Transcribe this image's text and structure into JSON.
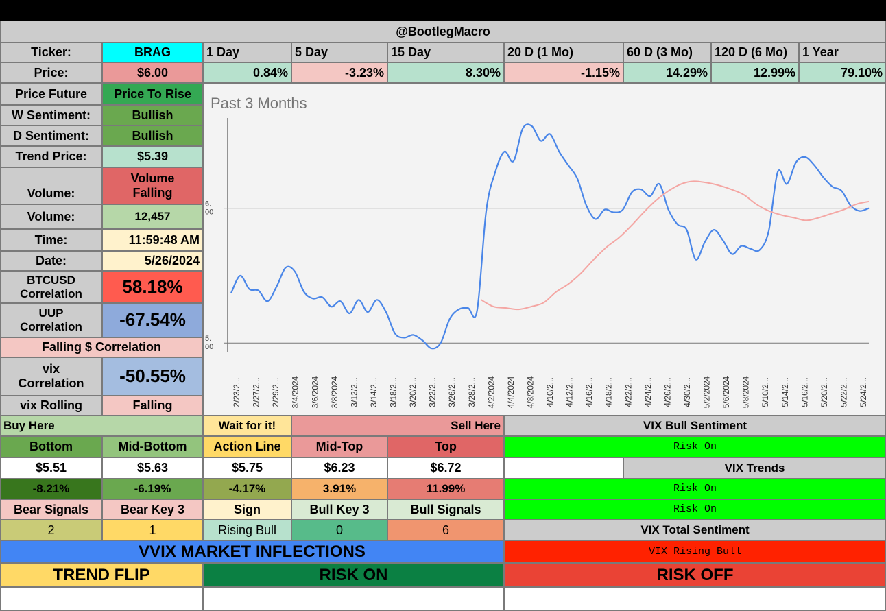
{
  "header": {
    "title": "@BootlegMacro"
  },
  "ticker_row": {
    "label": "Ticker:",
    "value": "BRAG",
    "periods": [
      "1 Day",
      "5 Day",
      "15 Day",
      "20 D (1 Mo)",
      "60 D (3 Mo)",
      "120 D (6 Mo)",
      "1 Year"
    ]
  },
  "price_row": {
    "label": "Price:",
    "value": "$6.00",
    "changes": [
      "0.84%",
      "-3.23%",
      "8.30%",
      "-1.15%",
      "14.29%",
      "12.99%",
      "79.10%"
    ]
  },
  "left_panel": {
    "price_future": {
      "label": "Price Future",
      "value": "Price To Rise"
    },
    "w_sentiment": {
      "label": "W Sentiment:",
      "value": "Bullish"
    },
    "d_sentiment": {
      "label": "D Sentiment:",
      "value": "Bullish"
    },
    "trend_price": {
      "label": "Trend Price:",
      "value": "$5.39"
    },
    "volume_trend": {
      "label": "Volume:",
      "value_line1": "Volume",
      "value_line2": "Falling"
    },
    "volume": {
      "label": "Volume:",
      "value": "12,457"
    },
    "time": {
      "label": "Time:",
      "value": "11:59:48 AM"
    },
    "date": {
      "label": "Date:",
      "value": "5/26/2024"
    },
    "btcusd": {
      "label_line1": "BTCUSD",
      "label_line2": "Correlation",
      "value": "58.18%"
    },
    "uup": {
      "label_line1": "UUP",
      "label_line2": "Correlation",
      "value": "-67.54%"
    },
    "falling_dollar": {
      "label": "Falling $ Correlation"
    },
    "vix_corr": {
      "label_line1": "vix",
      "label_line2": "Correlation",
      "value": "-50.55%"
    },
    "vix_rolling": {
      "label": "vix Rolling",
      "value": "Falling"
    }
  },
  "chart_data": {
    "type": "line",
    "title": "Past 3 Months",
    "y_tick_labels": [
      "6.\n00",
      "5.\n00"
    ],
    "y_ticks": [
      6.0,
      5.0
    ],
    "ylim": [
      4.93,
      6.67
    ],
    "x_tick_labels": [
      "2/23/2...",
      "2/27/2...",
      "2/29/2...",
      "3/4/2024",
      "3/6/2024",
      "3/8/2024",
      "3/12/2...",
      "3/14/2...",
      "3/18/2...",
      "3/20/2...",
      "3/22/2...",
      "3/26/2...",
      "3/28/2...",
      "4/2/2024",
      "4/4/2024",
      "4/8/2024",
      "4/10/2...",
      "4/12/2...",
      "4/16/2...",
      "4/18/2...",
      "4/22/2...",
      "4/24/2...",
      "4/26/2...",
      "4/30/2...",
      "5/2/2024",
      "5/6/2024",
      "5/8/2024",
      "5/10/2...",
      "5/14/2...",
      "5/16/2...",
      "5/20/2...",
      "5/22/2...",
      "5/24/2..."
    ],
    "grid": false,
    "series": [
      {
        "color": "#4a86e8",
        "values": [
          5.37,
          5.5,
          5.4,
          5.39,
          5.31,
          5.42,
          5.56,
          5.53,
          5.38,
          5.33,
          5.34,
          5.27,
          5.31,
          5.22,
          5.32,
          5.23,
          5.32,
          5.23,
          5.07,
          5.04,
          5.06,
          5.02,
          4.96,
          5.0,
          5.18,
          5.25,
          5.26,
          5.24,
          5.98,
          6.27,
          6.42,
          6.35,
          6.59,
          6.61,
          6.5,
          6.55,
          6.42,
          6.32,
          6.22,
          6.02,
          5.92,
          5.99,
          5.97,
          5.99,
          6.12,
          6.14,
          6.09,
          6.18,
          5.99,
          5.88,
          5.84,
          5.62,
          5.75,
          5.84,
          5.76,
          5.66,
          5.72,
          5.7,
          5.69,
          5.83,
          6.27,
          6.18,
          6.34,
          6.38,
          6.32,
          6.23,
          6.16,
          6.13,
          6.02,
          5.98,
          6.0
        ]
      },
      {
        "color": "#f4a6a3",
        "values": [
          null,
          null,
          null,
          null,
          null,
          null,
          null,
          null,
          null,
          null,
          null,
          null,
          null,
          null,
          null,
          null,
          null,
          null,
          null,
          null,
          5.32,
          5.27,
          5.26,
          5.25,
          5.27,
          5.3,
          5.38,
          5.44,
          5.52,
          5.62,
          5.71,
          5.78,
          5.87,
          5.97,
          6.06,
          6.13,
          6.18,
          6.2,
          6.19,
          6.17,
          6.14,
          6.1,
          6.03,
          5.98,
          5.95,
          5.93,
          5.91,
          5.93,
          5.96,
          5.99,
          6.03,
          6.05
        ]
      }
    ]
  },
  "levels": {
    "buy_here": "Buy Here",
    "wait": "Wait for it!",
    "sell_here": "Sell Here",
    "headers": [
      "Bottom",
      "Mid-Bottom",
      "Action Line",
      "Mid-Top",
      "Top"
    ],
    "prices": [
      "$5.51",
      "$5.63",
      "$5.75",
      "$6.23",
      "$6.72"
    ],
    "pcts": [
      "-8.21%",
      "-6.19%",
      "-4.17%",
      "3.91%",
      "11.99%"
    ],
    "signal_headers": [
      "Bear Signals",
      "Bear Key 3",
      "Sign",
      "Bull Key 3",
      "Bull Signals"
    ],
    "signal_values": [
      "2",
      "1",
      "Rising Bull",
      "0",
      "6"
    ]
  },
  "vix": {
    "bull_sentiment_label": "VIX Bull Sentiment",
    "bull_sentiment_value": "Risk On",
    "trends_label": "VIX Trends",
    "trend_1": "Risk On",
    "trend_2": "Risk On",
    "total_sentiment_label": "VIX Total Sentiment",
    "total_sentiment_value": "VIX Rising Bull"
  },
  "inflections": {
    "title": "VVIX MARKET INFLECTIONS",
    "trend_flip": "TREND FLIP",
    "risk_on": "RISK ON",
    "risk_off": "RISK OFF"
  },
  "colors": {
    "header_gray": "#cccccc",
    "cyan": "#00ffff",
    "green_dark": "#6aa84f",
    "green_light": "#b6d7a8",
    "mint": "#b7e1cd",
    "pink": "#f4c7c3",
    "red_med": "#e06666",
    "red_bright": "#ff5b4f",
    "blue_light": "#8eaadb",
    "yellow_light": "#fff2cc",
    "neon_green": "#00ff00",
    "red_flag": "#ff2200",
    "vvix_blue": "#4285f4",
    "risk_on_green": "#0b8043",
    "risk_off_red": "#ea4335",
    "trend_flip_yellow": "#ffd966"
  }
}
